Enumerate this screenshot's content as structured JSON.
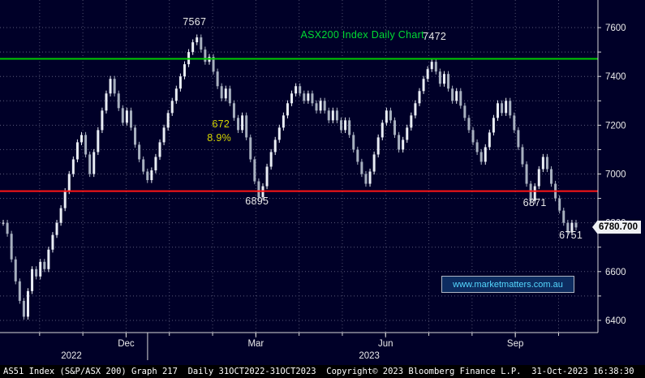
{
  "chart_data": {
    "type": "candlestick",
    "title": "ASX200 Index Daily Chart",
    "x_range": "31OCT2022-31OCT2023",
    "range_pad": 12,
    "close": [
      6800,
      6755,
      6650,
      6560,
      6480,
      6415,
      6520,
      6610,
      6580,
      6640,
      6610,
      6690,
      6750,
      6800,
      6860,
      6930,
      7000,
      7060,
      7130,
      7160,
      7080,
      7000,
      7090,
      7180,
      7260,
      7330,
      7390,
      7330,
      7270,
      7210,
      7260,
      7190,
      7120,
      7060,
      7010,
      6975,
      7015,
      7070,
      7130,
      7190,
      7250,
      7300,
      7350,
      7400,
      7450,
      7500,
      7540,
      7560,
      7510,
      7460,
      7480,
      7420,
      7360,
      7310,
      7350,
      7290,
      7230,
      7180,
      7240,
      7150,
      7060,
      6970,
      6905,
      6950,
      7030,
      7090,
      7140,
      7190,
      7240,
      7290,
      7330,
      7360,
      7330,
      7300,
      7330,
      7290,
      7260,
      7300,
      7260,
      7220,
      7260,
      7220,
      7180,
      7220,
      7160,
      7100,
      7050,
      7000,
      6960,
      7010,
      7080,
      7150,
      7210,
      7260,
      7220,
      7160,
      7100,
      7140,
      7190,
      7240,
      7290,
      7340,
      7390,
      7430,
      7460,
      7420,
      7370,
      7410,
      7350,
      7300,
      7340,
      7280,
      7230,
      7180,
      7130,
      7090,
      7050,
      7110,
      7170,
      7230,
      7290,
      7250,
      7300,
      7240,
      7180,
      7110,
      7040,
      6960,
      6890,
      6950,
      7020,
      7070,
      7020,
      6960,
      6900,
      6850,
      6800,
      6760,
      6800,
      6781
    ],
    "y_axis": {
      "min": 6350,
      "max": 7680,
      "grid_min": 6400,
      "grid_max": 7600,
      "grid_step": 100,
      "tick_labels": [
        7600,
        7400,
        7200,
        7000,
        6800,
        6600,
        6400
      ]
    },
    "x_axis": {
      "month_grid_f": [
        0.0635,
        0.139,
        0.2145,
        0.29,
        0.3655,
        0.441,
        0.5165,
        0.592,
        0.6675,
        0.743,
        0.8185,
        0.894,
        0.9695
      ],
      "tick_labels": [
        {
          "grid_index": 2,
          "label": "Dec"
        },
        {
          "grid_index": 5,
          "label": "Mar"
        },
        {
          "grid_index": 8,
          "label": "Jun"
        },
        {
          "grid_index": 11,
          "label": "Sep"
        }
      ],
      "year_labels": [
        {
          "f": 0.119,
          "label": "2022"
        },
        {
          "f": 0.639,
          "label": "2023"
        }
      ],
      "year_separator_f": 0.252
    },
    "levels": [
      {
        "name": "resistance-line",
        "value": 7472,
        "color": "#00cc00"
      },
      {
        "name": "support-line",
        "value": 6930,
        "color": "#ff1515"
      }
    ],
    "last_price": {
      "value": 6780.7,
      "label": "6780.700"
    }
  },
  "annotations": {
    "callouts": [
      {
        "name": "peak-feb-label",
        "text": "7567",
        "fx": 0.334,
        "price": 7623,
        "color": "#e8e8e8"
      },
      {
        "name": "chart-title",
        "text": "ASX200 Index Daily Chart",
        "fx": 0.627,
        "price": 7570,
        "color": "#00dd33"
      },
      {
        "name": "peak-jul-label",
        "text": "7472",
        "fx": 0.753,
        "price": 7564,
        "color": "#e8e8e8"
      },
      {
        "name": "decline-points-label",
        "text": "672",
        "fx": 0.38,
        "price": 7204,
        "color": "#d6d600"
      },
      {
        "name": "decline-pct-label",
        "text": "8.9%",
        "fx": 0.377,
        "price": 7148,
        "color": "#d6d600"
      },
      {
        "name": "low-mar-label",
        "text": "6895",
        "fx": 0.443,
        "price": 6889,
        "color": "#e8e8e8"
      },
      {
        "name": "low-oct-label",
        "text": "6871",
        "fx": 0.928,
        "price": 6882,
        "color": "#e8e8e8"
      },
      {
        "name": "low-oct2-label",
        "text": "6751",
        "fx": 0.991,
        "price": 6749,
        "color": "#e8e8e8"
      }
    ],
    "watermark": "www.marketmatters.com.au"
  },
  "footer": {
    "text": "AS51 Index (S&P/ASX 200) Graph 217  Daily 31OCT2022-31OCT2023  Copyright© 2023 Bloomberg Finance L.P.  31-Oct-2023 16:38:30"
  }
}
